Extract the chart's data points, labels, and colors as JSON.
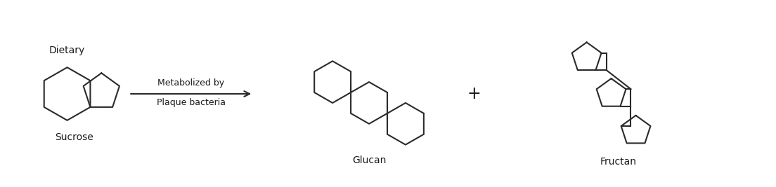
{
  "bg_color": "#ffffff",
  "text_color": "#1a1a1a",
  "lc": "#2a2a2a",
  "lw": 1.5,
  "label_dietary": "Dietary",
  "label_sucrose": "Sucrose",
  "label_arrow_line1": "Metabolized by",
  "label_arrow_line2": "Plaque bacteria",
  "label_glucan": "Glucan",
  "label_fructan": "Fructan",
  "label_plus": "+",
  "fig_w": 11.04,
  "fig_h": 2.67,
  "xlim": [
    0,
    11.04
  ],
  "ylim": [
    0,
    2.67
  ]
}
